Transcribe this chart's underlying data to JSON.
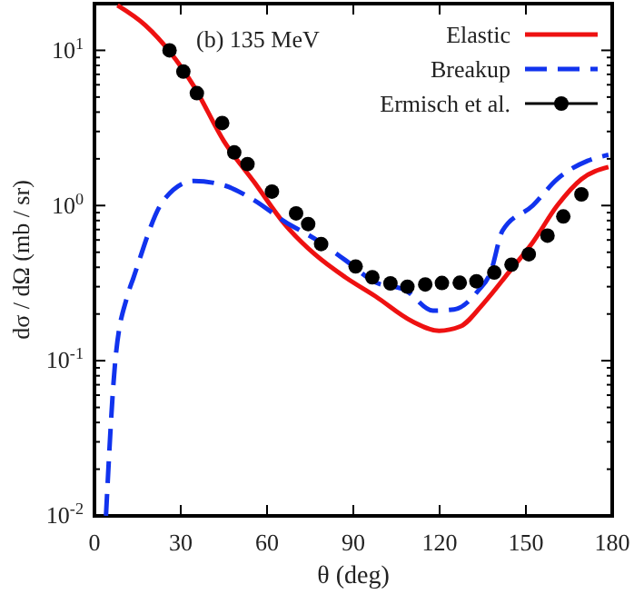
{
  "chart_data": {
    "type": "line",
    "xlabel": "θ (deg)",
    "ylabel": "dσ / dΩ (mb / sr)",
    "annotations": [
      "(b) 135 MeV"
    ],
    "log": "y",
    "legend": "top right",
    "xlim": [
      0,
      180
    ],
    "xticks": [
      0,
      30,
      60,
      90,
      120,
      150,
      180
    ],
    "ylim": [
      0.01,
      20
    ],
    "yticks": [
      {
        "value": 0.01,
        "label": "10$^{-2}$"
      },
      {
        "value": 0.02,
        "label": null
      },
      {
        "value": 0.03,
        "label": null
      },
      {
        "value": 0.04,
        "label": null
      },
      {
        "value": 0.05,
        "label": null
      },
      {
        "value": 0.06,
        "label": null
      },
      {
        "value": 0.07,
        "label": null
      },
      {
        "value": 0.08,
        "label": null
      },
      {
        "value": 0.09,
        "label": null
      },
      {
        "value": 0.1,
        "label": "10$^{-1}$"
      },
      {
        "value": 0.2,
        "label": null
      },
      {
        "value": 0.3,
        "label": null
      },
      {
        "value": 0.4,
        "label": null
      },
      {
        "value": 0.5,
        "label": null
      },
      {
        "value": 0.6,
        "label": null
      },
      {
        "value": 0.7,
        "label": null
      },
      {
        "value": 0.8,
        "label": null
      },
      {
        "value": 0.9,
        "label": null
      },
      {
        "value": 1,
        "label": "10$^{0}$"
      },
      {
        "value": 2,
        "label": null
      },
      {
        "value": 3,
        "label": null
      },
      {
        "value": 4,
        "label": null
      },
      {
        "value": 5,
        "label": null
      },
      {
        "value": 6,
        "label": null
      },
      {
        "value": 7,
        "label": null
      },
      {
        "value": 8,
        "label": null
      },
      {
        "value": 9,
        "label": null
      },
      {
        "value": 10,
        "label": "10$^{1}$"
      },
      {
        "value": 20,
        "label": null
      }
    ],
    "series": [
      {
        "name": "Elastic",
        "line_style": "solid",
        "color": "#ee1111",
        "x": [
          8,
          17.7,
          34.5,
          45,
          55.6,
          66.1,
          76.6,
          87.2,
          97.7,
          110.3,
          119.8,
          127.1,
          135.6,
          144,
          152.4,
          160.9,
          169.3,
          178.7
        ],
        "values": [
          19.5,
          14.5,
          5.9,
          2.6,
          1.41,
          0.76,
          0.485,
          0.345,
          0.26,
          0.18,
          0.156,
          0.166,
          0.238,
          0.37,
          0.58,
          1.0,
          1.48,
          1.77
        ]
      },
      {
        "name": "Breakup",
        "line_style": "dashed",
        "color": "#1133ee",
        "x": [
          4,
          7.2,
          11.4,
          13.5,
          24,
          34.5,
          45,
          55.6,
          66.1,
          76.6,
          87.2,
          97.7,
          108.2,
          117.7,
          125,
          133.5,
          137.7,
          141.9,
          152.4,
          160.9,
          171.4,
          178.7
        ],
        "values": [
          0.01,
          0.098,
          0.26,
          0.34,
          1.08,
          1.44,
          1.35,
          1.08,
          0.79,
          0.61,
          0.445,
          0.32,
          0.284,
          0.21,
          0.214,
          0.284,
          0.37,
          0.69,
          1.0,
          1.48,
          1.94,
          2.12
        ]
      },
      {
        "name": "Ermisch et al.",
        "type": "scatter",
        "marker": "circle",
        "color": "#000000",
        "x": [
          26.1,
          30.9,
          35.6,
          44.4,
          48.6,
          53.2,
          61.7,
          70.1,
          74.3,
          78.8,
          90.8,
          96.6,
          102.9,
          108.8,
          115,
          120.8,
          127,
          132.8,
          139,
          145,
          151,
          157.5,
          163,
          169.3
        ],
        "values": [
          10,
          7.3,
          5.3,
          3.4,
          2.2,
          1.85,
          1.23,
          0.89,
          0.76,
          0.565,
          0.405,
          0.345,
          0.315,
          0.3,
          0.31,
          0.317,
          0.318,
          0.325,
          0.37,
          0.416,
          0.485,
          0.64,
          0.85,
          1.18
        ]
      }
    ]
  }
}
